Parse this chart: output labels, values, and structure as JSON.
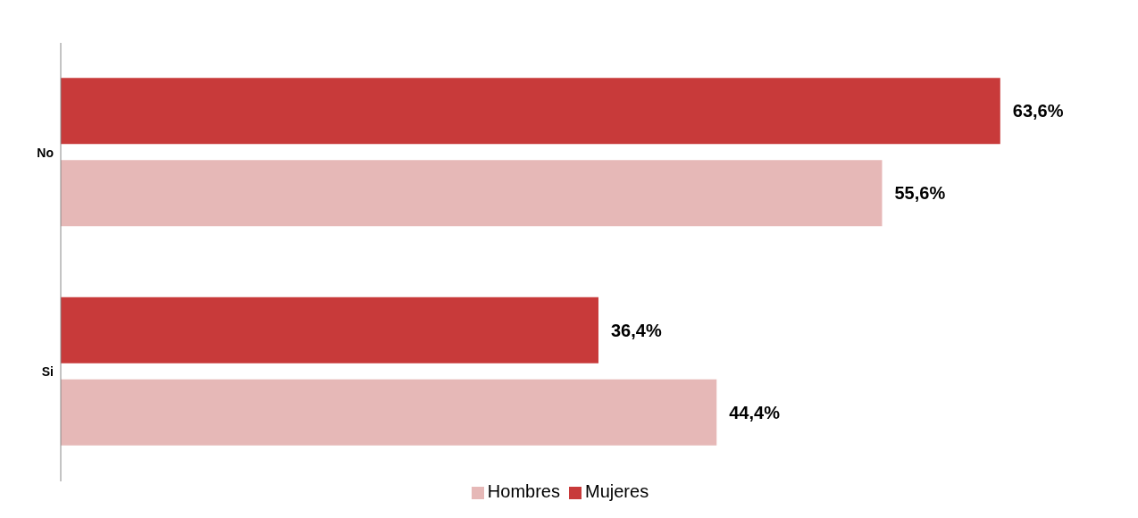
{
  "chart_data": {
    "type": "bar",
    "orientation": "horizontal",
    "categories": [
      "No",
      "Si"
    ],
    "series": [
      {
        "name": "Mujeres",
        "color": "#c83a3a",
        "values": [
          63.6,
          36.4
        ],
        "value_labels": [
          "63,6%",
          "36,4%"
        ]
      },
      {
        "name": "Hombres",
        "color": "#e6b8b7",
        "values": [
          55.6,
          44.4
        ],
        "value_labels": [
          "55,6%",
          "44,4%"
        ]
      }
    ],
    "legend": "bottom",
    "grid": false
  }
}
